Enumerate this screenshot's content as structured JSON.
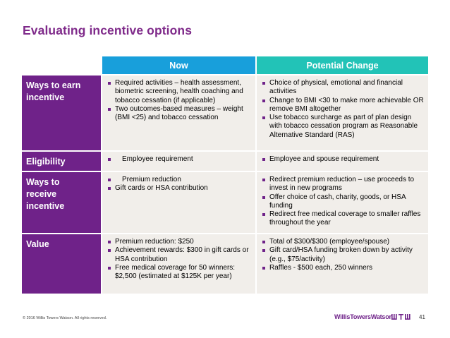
{
  "title": "Evaluating incentive options",
  "headers": {
    "now": "Now",
    "potential": "Potential Change"
  },
  "colors": {
    "purple": "#6f2289",
    "blue": "#189fdb",
    "teal": "#22c3b7",
    "cell": "#f1eeea"
  },
  "rows": [
    {
      "label": "Ways to earn incentive",
      "now": [
        "Required activities – health assessment, biometric screening, health coaching and tobacco cessation (if applicable)",
        "Two outcomes-based measures – weight (BMI  <25) and tobacco cessation"
      ],
      "potential": [
        "Choice of physical, emotional and financial activities",
        "Change to BMI <30 to make more achievable OR remove BMI altogether",
        "Use tobacco surcharge as part of plan design with tobacco cessation program as Reasonable Alternative Standard (RAS)"
      ]
    },
    {
      "label": "Eligibility",
      "now": [
        "Employee requirement"
      ],
      "potential": [
        "Employee and spouse requirement"
      ]
    },
    {
      "label": "Ways to receive incentive",
      "now": [
        "Premium reduction",
        "Gift cards or HSA contribution"
      ],
      "potential": [
        "Redirect premium reduction – use proceeds to invest in new programs",
        "Offer choice of cash, charity, goods, or HSA funding",
        "Redirect free medical coverage to smaller raffles throughout the year"
      ]
    },
    {
      "label": "Value",
      "now": [
        "Premium reduction: $250",
        "Achievement rewards: $300 in gift cards or HSA contribution",
        "Free medical coverage for 50 winners: $2,500 (estimated at $125K per year)"
      ],
      "potential": [
        "Total of $300/$300 (employee/spouse)",
        "Gift card/HSA funding broken down by activity (e.g., $75/activity)",
        "Raffles - $500 each, 250 winners"
      ]
    }
  ],
  "footer": {
    "copyright": "© 2016 Willis Towers Watson. All rights reserved.",
    "brand": "WillisTowersWatson",
    "logo_icon": "wtw-logo-icon",
    "page": "41"
  }
}
